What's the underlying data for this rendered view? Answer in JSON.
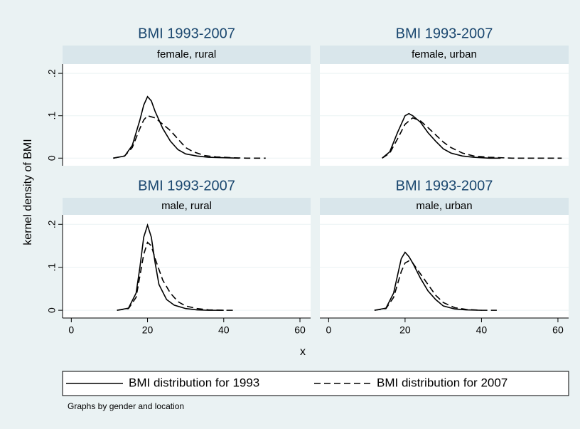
{
  "y_label": "kernel density of BMI",
  "x_label": "x",
  "note": "Graphs by gender and location",
  "chart_data": [
    {
      "type": "line",
      "title": "BMI 1993-2007",
      "subtitle": "female, rural",
      "xlim": [
        -2.3,
        62.8
      ],
      "ylim": [
        -0.018,
        0.222
      ],
      "yticks": [
        {
          "value": 0,
          "label": "0"
        },
        {
          "value": 0.1,
          "label": ".1"
        },
        {
          "value": 0.2,
          "label": ".2"
        }
      ],
      "grid": true,
      "series": [
        {
          "name": "BMI distribution for 1993",
          "color": "#000000",
          "style": "solid",
          "x": [
            11,
            14,
            16,
            18,
            19,
            20,
            21,
            22,
            24,
            26,
            28,
            30,
            33,
            36,
            40,
            44
          ],
          "values": [
            0,
            0.005,
            0.03,
            0.09,
            0.125,
            0.145,
            0.135,
            0.11,
            0.07,
            0.04,
            0.02,
            0.01,
            0.005,
            0.002,
            0.001,
            0
          ]
        },
        {
          "name": "BMI distribution for 2007",
          "color": "#000000",
          "style": "dashed",
          "x": [
            11,
            14,
            16,
            18,
            19,
            20,
            22,
            24,
            26,
            28,
            30,
            32,
            35,
            38,
            42,
            46,
            51
          ],
          "values": [
            0,
            0.005,
            0.025,
            0.07,
            0.09,
            0.1,
            0.095,
            0.08,
            0.065,
            0.045,
            0.025,
            0.015,
            0.006,
            0.003,
            0.001,
            0,
            0
          ]
        }
      ]
    },
    {
      "type": "line",
      "title": "BMI 1993-2007",
      "subtitle": "female, urban",
      "xlim": [
        -2.3,
        62.8
      ],
      "ylim": [
        -0.018,
        0.222
      ],
      "yticks": [
        0,
        0.1,
        0.2
      ],
      "grid": true,
      "series": [
        {
          "name": "BMI distribution for 1993",
          "color": "#000000",
          "style": "solid",
          "x": [
            14,
            16,
            18,
            20,
            21,
            22,
            24,
            26,
            28,
            30,
            32,
            35,
            38,
            42,
            45
          ],
          "values": [
            0,
            0.015,
            0.06,
            0.1,
            0.105,
            0.1,
            0.085,
            0.06,
            0.04,
            0.022,
            0.012,
            0.005,
            0.002,
            0,
            0
          ]
        },
        {
          "name": "BMI distribution for 2007",
          "color": "#000000",
          "style": "dashed",
          "x": [
            14,
            16,
            18,
            20,
            22,
            24,
            26,
            28,
            30,
            32,
            35,
            38,
            42,
            48,
            55,
            61
          ],
          "values": [
            0,
            0.012,
            0.045,
            0.08,
            0.095,
            0.088,
            0.072,
            0.055,
            0.038,
            0.025,
            0.012,
            0.005,
            0.002,
            0,
            0,
            0
          ]
        }
      ]
    },
    {
      "type": "line",
      "title": "BMI 1993-2007",
      "subtitle": "male, rural",
      "xlim": [
        -2.3,
        62.8
      ],
      "ylim": [
        -0.018,
        0.222
      ],
      "xticks": [
        0,
        20,
        40,
        60
      ],
      "yticks": [
        {
          "value": 0,
          "label": "0"
        },
        {
          "value": 0.1,
          "label": ".1"
        },
        {
          "value": 0.2,
          "label": ".2"
        }
      ],
      "grid": true,
      "series": [
        {
          "name": "BMI distribution for 1993",
          "color": "#000000",
          "style": "solid",
          "x": [
            12,
            15,
            17,
            18,
            19,
            20,
            21,
            22,
            23,
            25,
            27,
            30,
            33,
            36,
            40
          ],
          "values": [
            0,
            0.005,
            0.04,
            0.1,
            0.17,
            0.198,
            0.17,
            0.11,
            0.06,
            0.025,
            0.012,
            0.004,
            0.001,
            0,
            0
          ]
        },
        {
          "name": "BMI distribution for 2007",
          "color": "#000000",
          "style": "dashed",
          "x": [
            12,
            15,
            17,
            18,
            19,
            20,
            21,
            22,
            24,
            26,
            28,
            30,
            33,
            36,
            40,
            43
          ],
          "values": [
            0,
            0.004,
            0.03,
            0.08,
            0.13,
            0.158,
            0.15,
            0.12,
            0.07,
            0.04,
            0.02,
            0.01,
            0.004,
            0.001,
            0,
            0
          ]
        }
      ]
    },
    {
      "type": "line",
      "title": "BMI 1993-2007",
      "subtitle": "male, urban",
      "xlim": [
        -2.3,
        62.8
      ],
      "ylim": [
        -0.018,
        0.222
      ],
      "xticks": [
        0,
        20,
        40,
        60
      ],
      "yticks": [
        0,
        0.1,
        0.2
      ],
      "grid": true,
      "series": [
        {
          "name": "BMI distribution for 1993",
          "color": "#000000",
          "style": "solid",
          "x": [
            12,
            15,
            17,
            18,
            19,
            20,
            21,
            22,
            24,
            26,
            28,
            30,
            33,
            36,
            40
          ],
          "values": [
            0,
            0.005,
            0.04,
            0.08,
            0.12,
            0.135,
            0.125,
            0.11,
            0.075,
            0.045,
            0.025,
            0.01,
            0.003,
            0.001,
            0
          ]
        },
        {
          "name": "BMI distribution for 2007",
          "color": "#000000",
          "style": "dashed",
          "x": [
            12,
            15,
            17,
            18,
            19,
            20,
            21,
            22,
            24,
            26,
            28,
            30,
            33,
            36,
            40,
            44
          ],
          "values": [
            0,
            0.004,
            0.03,
            0.06,
            0.09,
            0.11,
            0.115,
            0.11,
            0.085,
            0.06,
            0.035,
            0.018,
            0.006,
            0.002,
            0,
            0
          ]
        }
      ]
    }
  ]
}
